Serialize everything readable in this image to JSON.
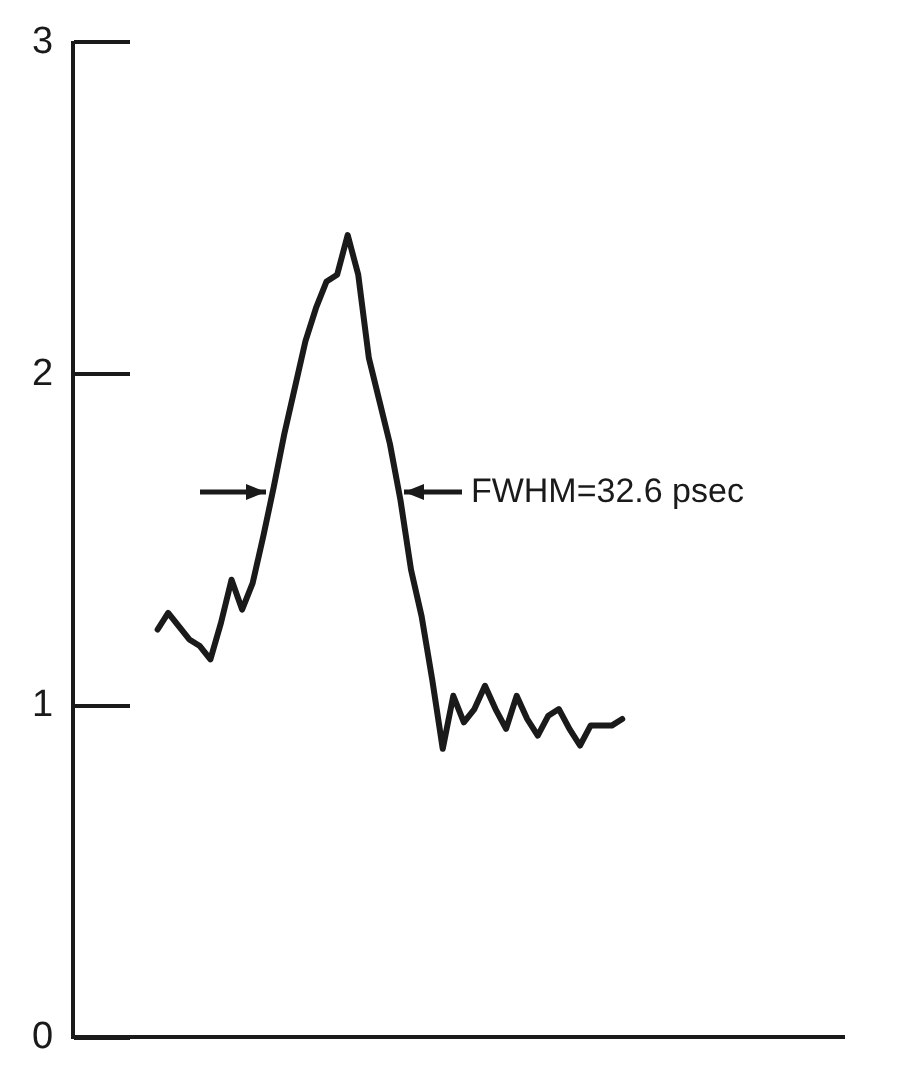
{
  "chart_data": {
    "type": "line",
    "categories": [
      null,
      null,
      null,
      null,
      null,
      null,
      null,
      null,
      null,
      null,
      null,
      null,
      null,
      null,
      null,
      null,
      null,
      null,
      null,
      null,
      null,
      null,
      null,
      null,
      null,
      null,
      null,
      null,
      null,
      null,
      null,
      null,
      null,
      null,
      null,
      null,
      null,
      null,
      null,
      null,
      null,
      null,
      null,
      null,
      null,
      null,
      null,
      null,
      null,
      null,
      null,
      null,
      null,
      null,
      null,
      null,
      null,
      null,
      null,
      null,
      null,
      null,
      null,
      null,
      null,
      null,
      null,
      null,
      null,
      null,
      null,
      null,
      null,
      null
    ],
    "values": [
      null,
      null,
      null,
      null,
      null,
      null,
      null,
      null,
      1.23,
      1.28,
      1.24,
      1.2,
      1.18,
      1.14,
      1.25,
      1.38,
      1.29,
      1.37,
      1.51,
      1.66,
      1.82,
      1.96,
      2.1,
      2.2,
      2.28,
      2.3,
      2.42,
      2.3,
      2.05,
      1.92,
      1.79,
      1.62,
      1.41,
      1.27,
      1.08,
      0.87,
      1.03,
      0.95,
      0.99,
      1.06,
      0.99,
      0.93,
      1.03,
      0.96,
      0.91,
      0.97,
      0.99,
      0.93,
      0.88,
      0.94,
      0.94,
      0.94,
      0.96,
      null,
      null,
      null,
      null,
      null,
      null,
      null,
      null,
      null,
      null,
      null,
      null,
      null,
      null,
      null,
      null,
      null,
      null,
      null,
      null,
      null
    ],
    "color": "#1a1a1a",
    "marker": "none",
    "line_style": "solid",
    "ylim": [
      0,
      3
    ],
    "yticks": [
      0,
      1,
      2,
      3
    ],
    "tick_labels": "y",
    "annotations": [
      "FWHM=32.6 psec"
    ]
  }
}
